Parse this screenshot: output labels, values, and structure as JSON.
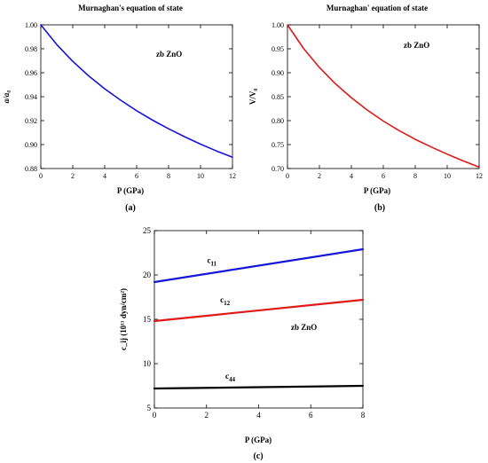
{
  "chart_data": [
    {
      "type": "line",
      "panel_label": "(a)",
      "title": "Murnaghan's equation of state",
      "xlabel": "P (GPa)",
      "ylabel": "a/a₀",
      "annotation": "zb ZnO",
      "xlim": [
        0,
        12
      ],
      "ylim": [
        0.88,
        1.0
      ],
      "xticks": [
        "0",
        "2",
        "4",
        "6",
        "8",
        "10",
        "12"
      ],
      "yticks": [
        "0.88",
        "0.90",
        "0.92",
        "0.94",
        "0.96",
        "0.98",
        "1.00"
      ],
      "series": [
        {
          "color": "#1515d8",
          "x": [
            0,
            1,
            2,
            3,
            4,
            5,
            6,
            7,
            8,
            9,
            10,
            11,
            12
          ],
          "y": [
            1.0,
            0.9835,
            0.9695,
            0.9573,
            0.9466,
            0.937,
            0.9283,
            0.9204,
            0.9132,
            0.9066,
            0.9004,
            0.8947,
            0.8894
          ]
        }
      ]
    },
    {
      "type": "line",
      "panel_label": "(b)",
      "title": "Murnaghan' equation of state",
      "xlabel": "P (GPa)",
      "ylabel": "V/V₀",
      "annotation": "zb ZnO",
      "xlim": [
        0,
        12
      ],
      "ylim": [
        0.7,
        1.0
      ],
      "xticks": [
        "0",
        "2",
        "4",
        "6",
        "8",
        "10",
        "12"
      ],
      "yticks": [
        "0.70",
        "0.75",
        "0.80",
        "0.85",
        "0.90",
        "0.95",
        "1.00"
      ],
      "series": [
        {
          "color": "#e01818",
          "x": [
            0,
            1,
            2,
            3,
            4,
            5,
            6,
            7,
            8,
            9,
            10,
            11,
            12
          ],
          "y": [
            1.0,
            0.951,
            0.911,
            0.877,
            0.848,
            0.822,
            0.799,
            0.779,
            0.761,
            0.745,
            0.73,
            0.716,
            0.703
          ]
        }
      ]
    },
    {
      "type": "line",
      "panel_label": "(c)",
      "title": "",
      "xlabel": "P (GPa)",
      "ylabel": "c_ij (10¹¹ dyn/cm²)",
      "annotation": "zb ZnO",
      "xlim": [
        0,
        8
      ],
      "ylim": [
        5,
        25
      ],
      "xticks": [
        "0",
        "2",
        "4",
        "6",
        "8"
      ],
      "yticks": [
        "5",
        "10",
        "15",
        "20",
        "25"
      ],
      "series": [
        {
          "name": "c11",
          "color": "#1515d8",
          "x": [
            0,
            8
          ],
          "y": [
            19.2,
            22.9
          ]
        },
        {
          "name": "c12",
          "color": "#e01818",
          "x": [
            0,
            8
          ],
          "y": [
            14.8,
            17.2
          ]
        },
        {
          "name": "c44",
          "color": "#000000",
          "x": [
            0,
            8
          ],
          "y": [
            7.2,
            7.5
          ]
        }
      ]
    }
  ]
}
